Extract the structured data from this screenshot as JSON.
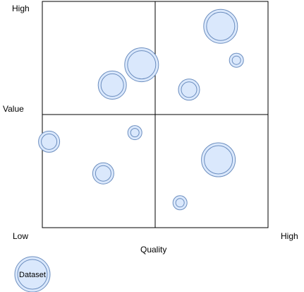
{
  "colors": {
    "bubble_fill": "#dae8fc",
    "bubble_stroke": "#6c8ebf",
    "grid_stroke": "#000000"
  },
  "axes": {
    "y_high": "High",
    "y_title": "Value",
    "x_low": "Low",
    "x_title": "Quality",
    "x_high": "High"
  },
  "legend": {
    "label": "Dataset"
  },
  "chart_data": {
    "type": "scatter",
    "xlabel": "Quality",
    "ylabel": "Value",
    "xlim": [
      0,
      1
    ],
    "ylim": [
      0,
      1
    ],
    "quadrants": 4,
    "series": [
      {
        "name": "Dataset",
        "points": [
          {
            "x": 0.44,
            "y": 0.72,
            "size": 24
          },
          {
            "x": 0.31,
            "y": 0.63,
            "size": 20
          },
          {
            "x": 0.79,
            "y": 0.89,
            "size": 24
          },
          {
            "x": 0.86,
            "y": 0.74,
            "size": 10
          },
          {
            "x": 0.65,
            "y": 0.61,
            "size": 15
          },
          {
            "x": 0.03,
            "y": 0.38,
            "size": 15
          },
          {
            "x": 0.41,
            "y": 0.42,
            "size": 10
          },
          {
            "x": 0.27,
            "y": 0.24,
            "size": 15
          },
          {
            "x": 0.78,
            "y": 0.3,
            "size": 24
          },
          {
            "x": 0.61,
            "y": 0.11,
            "size": 10
          }
        ]
      }
    ]
  }
}
